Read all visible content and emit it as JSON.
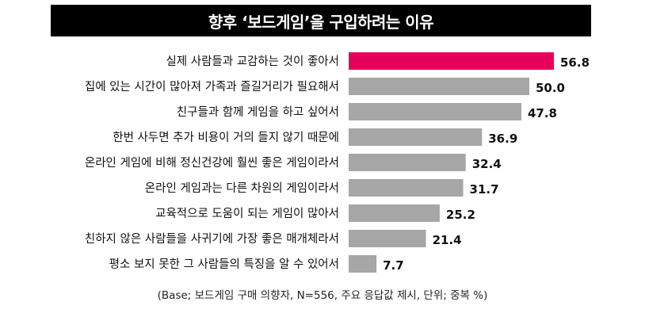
{
  "chart_data": {
    "type": "bar",
    "orientation": "horizontal",
    "title": "향후 ‘보드게임’을 구입하려는 이유",
    "categories": [
      "실제 사람들과 교감하는 것이 좋아서",
      "집에 있는 시간이 많아져 가족과 즐길거리가 필요해서",
      "친구들과 함께 게임을 하고 싶어서",
      "한번 사두면 추가 비용이 거의 들지 않기 때문에",
      "온라인 게임에 비해 정신건강에 훨씬 좋은 게임이라서",
      "온라인 게임과는 다른 차원의 게임이라서",
      "교육적으로 도움이 되는 게임이 많아서",
      "친하지 않은 사람들을 사귀기에 가장 좋은 매개체라서",
      "평소 보지 못한 그 사람들의 특징을 알 수 있어서"
    ],
    "values": [
      56.8,
      50.0,
      47.8,
      36.9,
      32.4,
      31.7,
      25.2,
      21.4,
      7.7
    ],
    "value_labels": [
      "56.8",
      "50.0",
      "47.8",
      "36.9",
      "32.4",
      "31.7",
      "25.2",
      "21.4",
      "7.7"
    ],
    "xlim": [
      0,
      56.8
    ],
    "grid": false,
    "legend": "none",
    "colors": {
      "highlight": "#e6005c",
      "bar": "#a6a6a6"
    },
    "footnote": "(Base; 보드게임 구매 의향자, N=556, 주요 응답값 제시, 단위; 중복 %)"
  }
}
